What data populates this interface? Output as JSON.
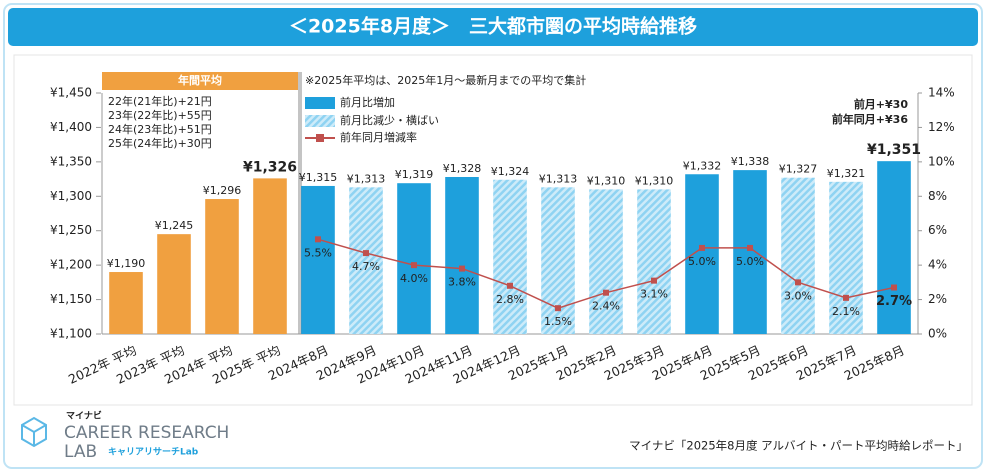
{
  "chart_data": {
    "type": "bar",
    "title": "＜2025年8月度＞　三大都市圏の平均時給推移",
    "note": "※2025年平均は、2025年1月～最新月までの平均で集計",
    "annual_notes": [
      "22年(21年比)+21円",
      "23年(22年比)+55円",
      "24年(23年比)+51円",
      "25年(24年比)+30円"
    ],
    "summary": [
      "前月+¥30",
      "前年同月+¥36"
    ],
    "categories": [
      "2022年 平均",
      "2023年 平均",
      "2024年 平均",
      "2025年 平均",
      "2024年8月",
      "2024年9月",
      "2024年10月",
      "2024年11月",
      "2024年12月",
      "2025年1月",
      "2025年2月",
      "2025年3月",
      "2025年4月",
      "2025年5月",
      "2025年6月",
      "2025年7月",
      "2025年8月"
    ],
    "series": [
      {
        "name": "年間平均",
        "type": "bar",
        "color": "#f0a040",
        "values": [
          1190,
          1245,
          1296,
          1326,
          null,
          null,
          null,
          null,
          null,
          null,
          null,
          null,
          null,
          null,
          null,
          null,
          null
        ],
        "value_labels": [
          "¥1,190",
          "¥1,245",
          "¥1,296",
          "¥1,326",
          null,
          null,
          null,
          null,
          null,
          null,
          null,
          null,
          null,
          null,
          null,
          null,
          null
        ]
      },
      {
        "name": "前月比増加",
        "type": "bar",
        "color": "#1ea0dc",
        "values": [
          null,
          null,
          null,
          null,
          1315,
          null,
          1319,
          1328,
          null,
          null,
          null,
          null,
          1332,
          1338,
          null,
          null,
          1351
        ],
        "value_labels": [
          null,
          null,
          null,
          null,
          "¥1,315",
          null,
          "¥1,319",
          "¥1,328",
          null,
          null,
          null,
          null,
          "¥1,332",
          "¥1,338",
          null,
          null,
          "¥1,351"
        ]
      },
      {
        "name": "前月比減少・横ばい",
        "type": "bar",
        "color": "#8fd3f2",
        "pattern": "hatch",
        "values": [
          null,
          null,
          null,
          null,
          null,
          1313,
          null,
          null,
          1324,
          1313,
          1310,
          1310,
          null,
          null,
          1327,
          1321,
          null
        ],
        "value_labels": [
          null,
          null,
          null,
          null,
          null,
          "¥1,313",
          null,
          null,
          "¥1,324",
          "¥1,313",
          "¥1,310",
          "¥1,310",
          null,
          null,
          "¥1,327",
          "¥1,321",
          null
        ]
      },
      {
        "name": "前年同月増減率",
        "type": "line",
        "color": "#c0504d",
        "axis": "y2",
        "values": [
          null,
          null,
          null,
          null,
          5.5,
          4.7,
          4.0,
          3.8,
          2.8,
          1.5,
          2.4,
          3.1,
          5.0,
          5.0,
          3.0,
          2.1,
          2.7
        ],
        "value_labels": [
          null,
          null,
          null,
          null,
          "5.5%",
          "4.7%",
          "4.0%",
          "3.8%",
          "2.8%",
          "1.5%",
          "2.4%",
          "3.1%",
          "5.0%",
          "5.0%",
          "3.0%",
          "2.1%",
          "2.7%"
        ]
      }
    ],
    "ylim": [
      1100,
      1450
    ],
    "yticks": [
      {
        "value": 1100,
        "label": "¥1,100"
      },
      {
        "value": 1150,
        "label": "¥1,150"
      },
      {
        "value": 1200,
        "label": "¥1,200"
      },
      {
        "value": 1250,
        "label": "¥1,250"
      },
      {
        "value": 1300,
        "label": "¥1,300"
      },
      {
        "value": 1350,
        "label": "¥1,350"
      },
      {
        "value": 1400,
        "label": "¥1,400"
      },
      {
        "value": 1450,
        "label": "¥1,450"
      }
    ],
    "y2lim": [
      0,
      14
    ],
    "y2ticks": [
      {
        "value": 0,
        "label": "0%"
      },
      {
        "value": 2,
        "label": "2%"
      },
      {
        "value": 4,
        "label": "4%"
      },
      {
        "value": 6,
        "label": "6%"
      },
      {
        "value": 8,
        "label": "8%"
      },
      {
        "value": 10,
        "label": "10%"
      },
      {
        "value": 12,
        "label": "12%"
      },
      {
        "value": 14,
        "label": "14%"
      }
    ],
    "grid": false
  },
  "source": "マイナビ「2025年8月度 アルバイト・パート平均時給レポート」",
  "logo": {
    "brand": "マイナビ",
    "line1": "CAREER RESEARCH",
    "line2": "LAB",
    "sub": "キャリアリサーチLab"
  }
}
